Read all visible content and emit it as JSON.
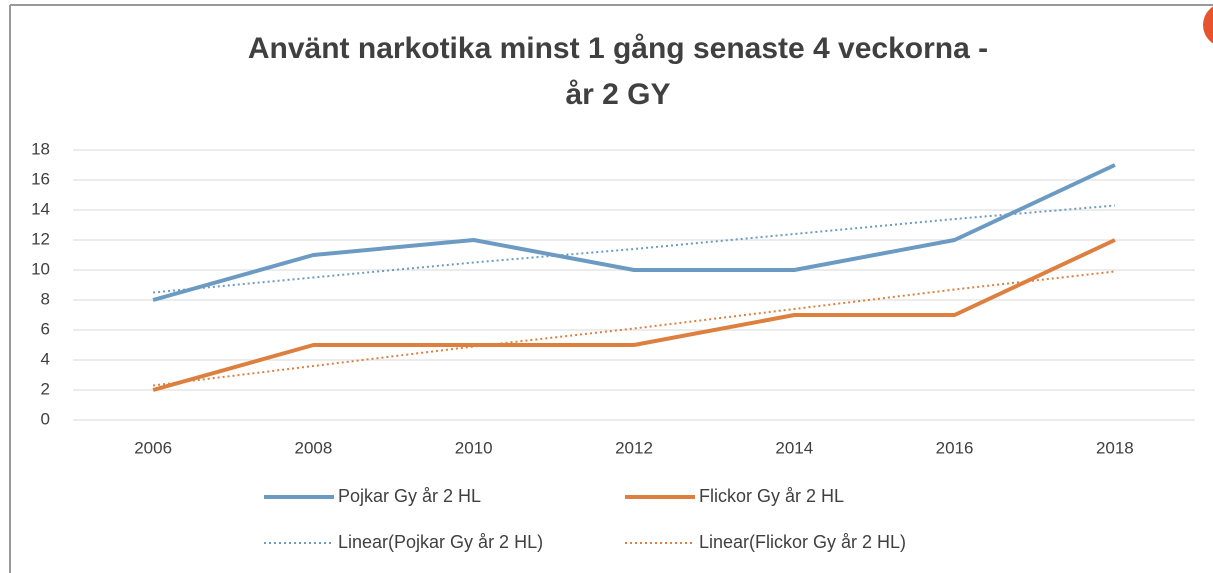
{
  "chart_data": {
    "type": "line",
    "title": [
      "Använt narkotika minst 1 gång senaste 4 veckorna -",
      "år 2 GY"
    ],
    "categories": [
      "2006",
      "2008",
      "2010",
      "2012",
      "2014",
      "2016",
      "2018"
    ],
    "series": [
      {
        "name": "Pojkar Gy år 2 HL",
        "color": "#6b9bc3",
        "dash": false,
        "values": [
          8,
          11,
          12,
          10,
          10,
          12,
          17
        ]
      },
      {
        "name": "Flickor Gy år 2 HL",
        "color": "#dd7f3e",
        "dash": false,
        "values": [
          2,
          5,
          5,
          5,
          7,
          7,
          12
        ]
      },
      {
        "name": "Linear(Pojkar Gy år 2 HL)",
        "color": "#6b9bc3",
        "dash": true,
        "values": [
          8.5,
          9.5,
          10.5,
          11.4,
          12.4,
          13.4,
          14.3
        ]
      },
      {
        "name": "Linear(Flickor Gy år 2 HL)",
        "color": "#dd7f3e",
        "dash": true,
        "values": [
          2.3,
          3.6,
          4.9,
          6.1,
          7.4,
          8.7,
          9.9
        ]
      }
    ],
    "ylim": [
      0,
      18
    ],
    "yticks": [
      0,
      2,
      4,
      6,
      8,
      10,
      12,
      14,
      16,
      18
    ],
    "grid": true,
    "legend": "bottom"
  }
}
